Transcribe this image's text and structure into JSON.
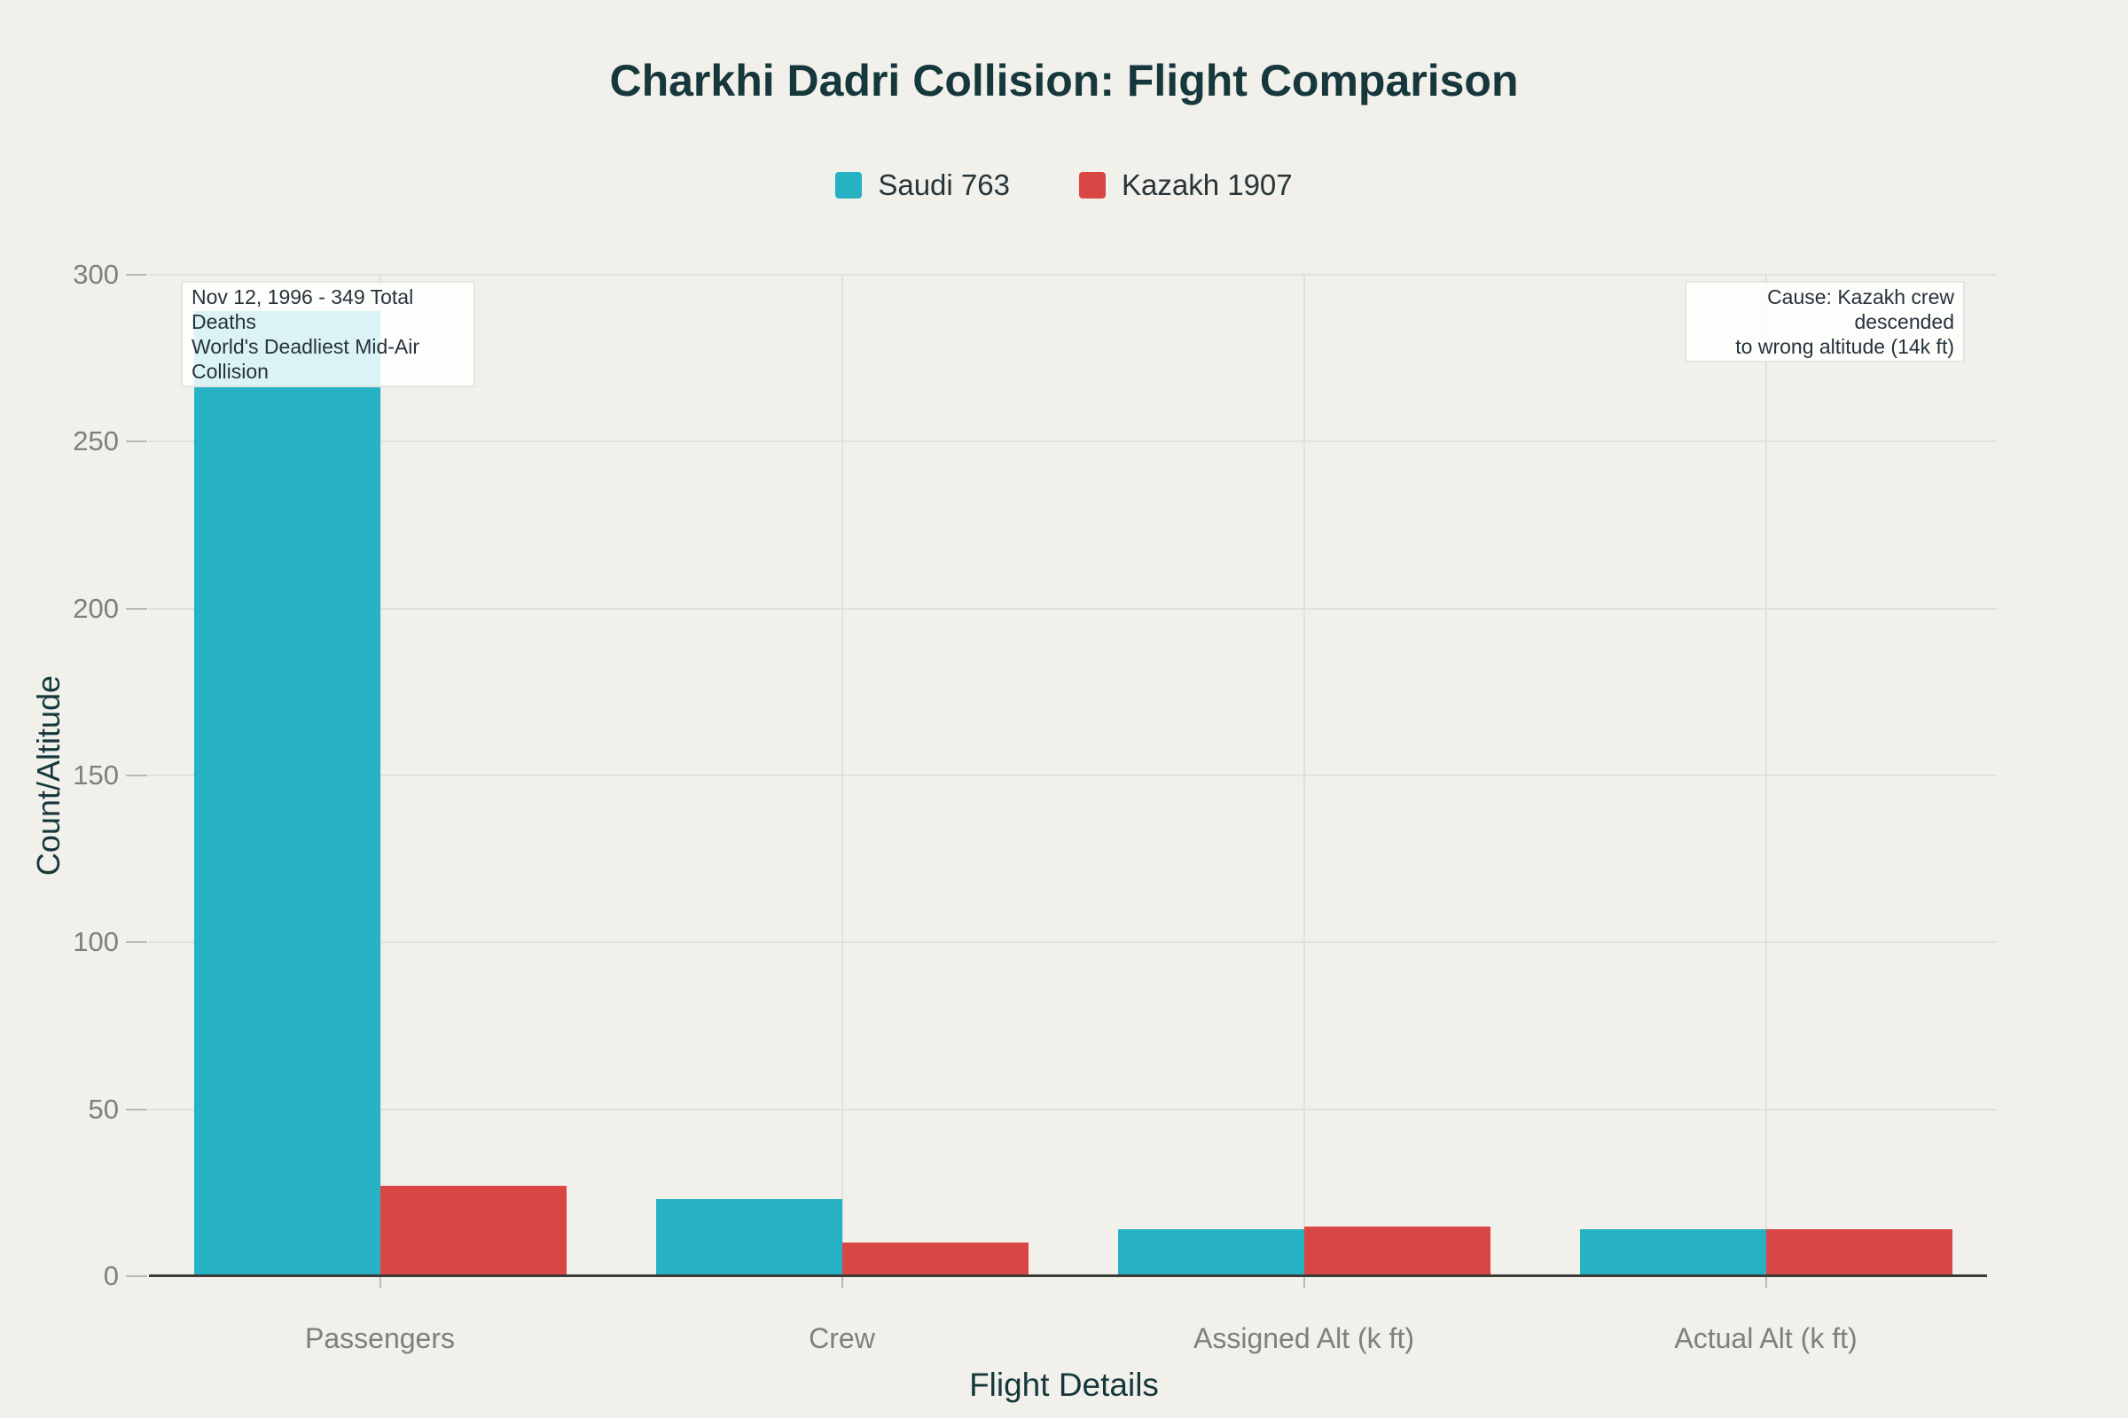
{
  "chart_data": {
    "type": "bar",
    "title": "Charkhi Dadri Collision: Flight Comparison",
    "xlabel": "Flight Details",
    "ylabel": "Count/Altitude",
    "categories": [
      "Passengers",
      "Crew",
      "Assigned Alt (k ft)",
      "Actual Alt (k ft)"
    ],
    "series": [
      {
        "name": "Saudi 763",
        "color": "#27b2c3",
        "values": [
          289,
          23,
          14,
          14
        ]
      },
      {
        "name": "Kazakh 1907",
        "color": "#d94744",
        "values": [
          27,
          10,
          15,
          14
        ]
      }
    ],
    "ylim": [
      0,
      300
    ],
    "y_ticks": [
      0,
      50,
      100,
      150,
      200,
      250,
      300
    ],
    "grid": true,
    "legend_position": "top",
    "annotations": [
      {
        "lines": [
          "Nov 12, 1996 - 349 Total Deaths",
          "World's Deadliest Mid-Air Collision"
        ],
        "align": "left"
      },
      {
        "lines": [
          "Cause: Kazakh crew descended",
          "to wrong altitude (14k ft)"
        ],
        "align": "right"
      }
    ]
  },
  "colors": {
    "background": "#f1f0ea",
    "title_text": "#16383c",
    "tick_text": "#7d807d",
    "gridline": "#e1e1dc",
    "axis_line": "#3b3b38",
    "annotation_bg": "rgba(255,255,255,0.84)",
    "annotation_border": "#e4e4e0",
    "annotation_text": "#26333a"
  }
}
